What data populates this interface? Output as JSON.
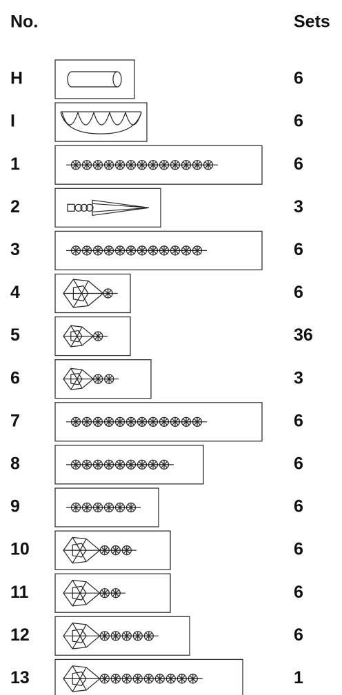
{
  "header": {
    "no": "No.",
    "sets": "Sets"
  },
  "rows": [
    {
      "no": "H",
      "sets": "6"
    },
    {
      "no": "I",
      "sets": "6"
    },
    {
      "no": "1",
      "sets": "6"
    },
    {
      "no": "2",
      "sets": "3"
    },
    {
      "no": "3",
      "sets": "6"
    },
    {
      "no": "4",
      "sets": "6"
    },
    {
      "no": "5",
      "sets": "36"
    },
    {
      "no": "6",
      "sets": "3"
    },
    {
      "no": "7",
      "sets": "6"
    },
    {
      "no": "8",
      "sets": "6"
    },
    {
      "no": "9",
      "sets": "6"
    },
    {
      "no": "10",
      "sets": "6"
    },
    {
      "no": "11",
      "sets": "6"
    },
    {
      "no": "12",
      "sets": "6"
    },
    {
      "no": "13",
      "sets": "1"
    }
  ]
}
